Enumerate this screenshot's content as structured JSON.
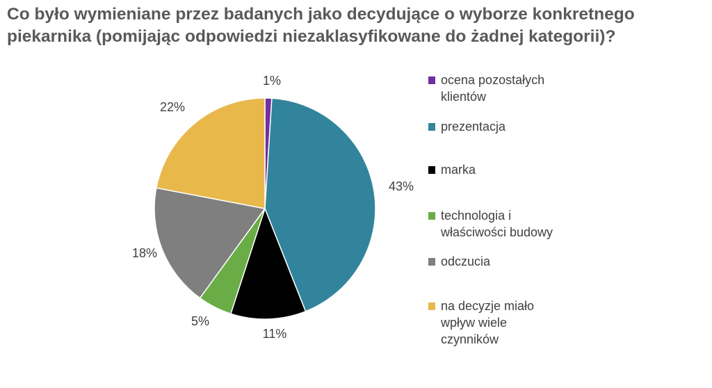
{
  "title_lines": [
    "Co było wymieniane przez badanych jako decydujące o wyborze konkretnego",
    "piekarnika (pomijając odpowiedzi niezaklasyfikowane do żadnej kategorii)?"
  ],
  "chart_data": {
    "type": "pie",
    "title": "Co było wymieniane przez badanych jako decydujące o wyborze konkretnego piekarnika (pomijając odpowiedzi niezaklasyfikowane do żadnej kategorii)?",
    "slices": [
      {
        "label": "ocena pozostałych klientów",
        "value": 1,
        "value_label": "1%",
        "color": "#7030a0"
      },
      {
        "label": "prezentacja",
        "value": 43,
        "value_label": "43%",
        "color": "#31849b"
      },
      {
        "label": "marka",
        "value": 11,
        "value_label": "11%",
        "color": "#000000"
      },
      {
        "label": "technologia i właściwości budowy",
        "value": 5,
        "value_label": "5%",
        "color": "#6aac46"
      },
      {
        "label": "odczucia",
        "value": 18,
        "value_label": "18%",
        "color": "#7f7f7f"
      },
      {
        "label": "na decyzje miało wpływ wiele czynników",
        "value": 22,
        "value_label": "22%",
        "color": "#e8b84b"
      }
    ],
    "legend": {
      "position": "right",
      "items": [
        {
          "lines": [
            "ocena pozostałych",
            "klientów"
          ],
          "color": "#7030a0"
        },
        {
          "lines": [
            "prezentacja"
          ],
          "color": "#31849b"
        },
        {
          "lines": [
            "marka"
          ],
          "color": "#000000"
        },
        {
          "lines": [
            "technologia i",
            "właściwości budowy"
          ],
          "color": "#6aac46"
        },
        {
          "lines": [
            "odczucia"
          ],
          "color": "#7f7f7f"
        },
        {
          "lines": [
            "na decyzje miało",
            "wpływ wiele",
            "czynników"
          ],
          "color": "#e8b84b"
        }
      ]
    }
  }
}
